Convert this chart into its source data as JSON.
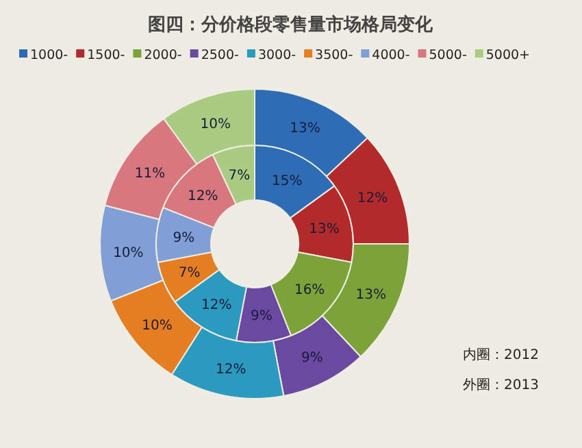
{
  "chart_data": {
    "type": "donut",
    "title": "图四：分价格段零售量市场格局变化",
    "categories": [
      "1000-",
      "1500-",
      "2000-",
      "2500-",
      "3000-",
      "3500-",
      "4000-",
      "5000-",
      "5000+"
    ],
    "colors": [
      "#2e6db5",
      "#b22a2a",
      "#7ca33a",
      "#6a4aa0",
      "#2a9bbf",
      "#e57e22",
      "#7f9fd6",
      "#d9777f",
      "#a9cc82"
    ],
    "series": [
      {
        "values": [
          15,
          13,
          16,
          9,
          12,
          7,
          9,
          12,
          7
        ],
        "value_labels": [
          "15%",
          "13%",
          "16%",
          "9%",
          "12%",
          "7%",
          "9%",
          "12%",
          "7%"
        ]
      },
      {
        "values": [
          13,
          12,
          13,
          9,
          12,
          10,
          10,
          11,
          10
        ],
        "value_labels": [
          "13%",
          "12%",
          "13%",
          "9%",
          "12%",
          "10%",
          "10%",
          "11%",
          "10%"
        ]
      }
    ],
    "legend": "top",
    "annotations": [
      "内圈：2012",
      "外圈：2013"
    ]
  }
}
